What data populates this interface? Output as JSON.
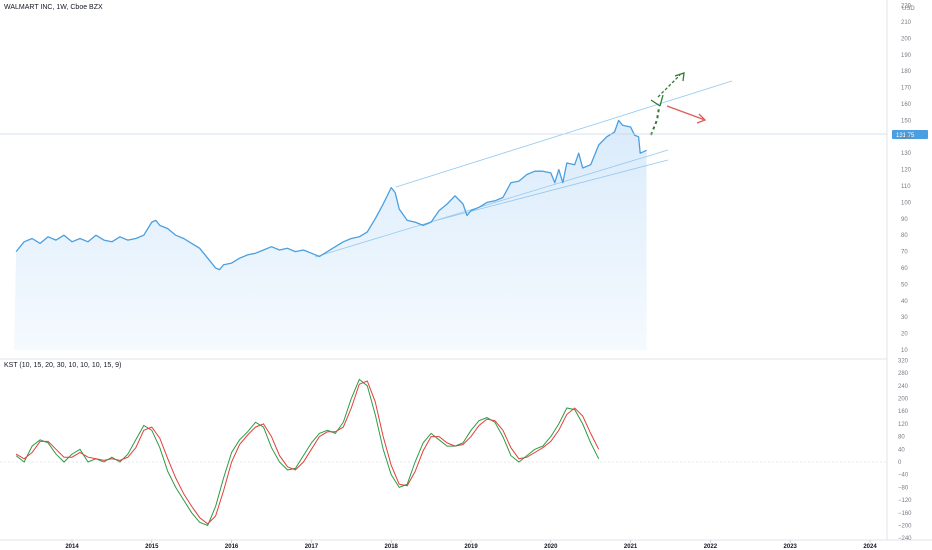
{
  "header": {
    "title": "WALMART INC, 1W, Cboe BZX",
    "currency": "USD",
    "price_tag": "131.75"
  },
  "indicator": {
    "label": "KST (10, 15, 20, 30, 10, 10, 10, 15, 9)"
  },
  "colors": {
    "price_line": "#4a9fe0",
    "area_fill": "#d8eafb",
    "channel": "#93c8ee",
    "kst_line": "#2e9b47",
    "signal_line": "#e0403a",
    "arrow_up": "#2e7d32",
    "arrow_down": "#e05a5a",
    "price_tag_bg": "#4a9fe0"
  },
  "chart_data": [
    {
      "type": "area",
      "title": "WALMART INC, 1W, Cboe BZX",
      "ylabel": "USD",
      "ylim": [
        8,
        222
      ],
      "y_ticks": [
        10,
        20,
        30,
        40,
        50,
        60,
        70,
        80,
        90,
        100,
        110,
        120,
        130,
        140,
        150,
        160,
        170,
        180,
        190,
        200,
        210,
        220
      ],
      "x_ticks": [
        "2014",
        "2015",
        "2016",
        "2017",
        "2018",
        "2019",
        "2020",
        "2021",
        "2022",
        "2023",
        "2024"
      ],
      "last_price": 131.75,
      "series": [
        {
          "values": [
            [
              2013.3,
              70
            ],
            [
              2013.4,
              76
            ],
            [
              2013.5,
              78
            ],
            [
              2013.6,
              75
            ],
            [
              2013.7,
              79
            ],
            [
              2013.8,
              77
            ],
            [
              2013.9,
              80
            ],
            [
              2014.0,
              76
            ],
            [
              2014.1,
              78
            ],
            [
              2014.2,
              76
            ],
            [
              2014.3,
              80
            ],
            [
              2014.4,
              77
            ],
            [
              2014.5,
              76
            ],
            [
              2014.6,
              79
            ],
            [
              2014.7,
              77
            ],
            [
              2014.8,
              78
            ],
            [
              2014.9,
              80
            ],
            [
              2015.0,
              88
            ],
            [
              2015.05,
              89
            ],
            [
              2015.1,
              86
            ],
            [
              2015.2,
              84
            ],
            [
              2015.3,
              80
            ],
            [
              2015.4,
              78
            ],
            [
              2015.5,
              75
            ],
            [
              2015.6,
              72
            ],
            [
              2015.7,
              66
            ],
            [
              2015.8,
              60
            ],
            [
              2015.85,
              59
            ],
            [
              2015.9,
              62
            ],
            [
              2016.0,
              63
            ],
            [
              2016.1,
              66
            ],
            [
              2016.2,
              68
            ],
            [
              2016.3,
              69
            ],
            [
              2016.4,
              71
            ],
            [
              2016.5,
              73
            ],
            [
              2016.6,
              71
            ],
            [
              2016.7,
              72
            ],
            [
              2016.8,
              70
            ],
            [
              2016.9,
              71
            ],
            [
              2017.0,
              69
            ],
            [
              2017.1,
              67
            ],
            [
              2017.2,
              70
            ],
            [
              2017.3,
              73
            ],
            [
              2017.4,
              76
            ],
            [
              2017.5,
              78
            ],
            [
              2017.6,
              79
            ],
            [
              2017.7,
              82
            ],
            [
              2017.8,
              90
            ],
            [
              2017.9,
              99
            ],
            [
              2018.0,
              109
            ],
            [
              2018.05,
              106
            ],
            [
              2018.1,
              96
            ],
            [
              2018.2,
              89
            ],
            [
              2018.3,
              88
            ],
            [
              2018.4,
              86
            ],
            [
              2018.5,
              88
            ],
            [
              2018.6,
              95
            ],
            [
              2018.7,
              99
            ],
            [
              2018.8,
              104
            ],
            [
              2018.9,
              99
            ],
            [
              2018.95,
              92
            ],
            [
              2019.0,
              95
            ],
            [
              2019.1,
              97
            ],
            [
              2019.2,
              100
            ],
            [
              2019.3,
              101
            ],
            [
              2019.4,
              103
            ],
            [
              2019.5,
              112
            ],
            [
              2019.6,
              113
            ],
            [
              2019.7,
              117
            ],
            [
              2019.8,
              119
            ],
            [
              2019.9,
              119
            ],
            [
              2020.0,
              118
            ],
            [
              2020.05,
              112
            ],
            [
              2020.1,
              120
            ],
            [
              2020.15,
              112
            ],
            [
              2020.2,
              124
            ],
            [
              2020.3,
              123
            ],
            [
              2020.35,
              130
            ],
            [
              2020.4,
              121
            ],
            [
              2020.5,
              123
            ],
            [
              2020.6,
              135
            ],
            [
              2020.7,
              140
            ],
            [
              2020.8,
              143
            ],
            [
              2020.85,
              150
            ],
            [
              2020.9,
              147
            ],
            [
              2021.0,
              146
            ],
            [
              2021.05,
              141
            ],
            [
              2021.1,
              140
            ],
            [
              2021.12,
              130
            ],
            [
              2021.2,
              131.75
            ]
          ]
        }
      ]
    },
    {
      "type": "line",
      "title": "KST (10, 15, 20, 30, 10, 10, 10, 15, 9)",
      "ylim": [
        -240,
        320
      ],
      "y_ticks": [
        -240,
        -200,
        -160,
        -120,
        -80,
        -40,
        0,
        40,
        80,
        120,
        160,
        200,
        240,
        280,
        320
      ],
      "series": [
        {
          "name": "KST",
          "values": [
            [
              2013.3,
              20
            ],
            [
              2013.4,
              0
            ],
            [
              2013.5,
              50
            ],
            [
              2013.6,
              70
            ],
            [
              2013.7,
              60
            ],
            [
              2013.8,
              25
            ],
            [
              2013.9,
              0
            ],
            [
              2014.0,
              25
            ],
            [
              2014.1,
              40
            ],
            [
              2014.2,
              0
            ],
            [
              2014.3,
              10
            ],
            [
              2014.4,
              0
            ],
            [
              2014.5,
              15
            ],
            [
              2014.6,
              0
            ],
            [
              2014.7,
              25
            ],
            [
              2014.8,
              70
            ],
            [
              2014.9,
              115
            ],
            [
              2015.0,
              100
            ],
            [
              2015.1,
              45
            ],
            [
              2015.2,
              -30
            ],
            [
              2015.3,
              -80
            ],
            [
              2015.4,
              -120
            ],
            [
              2015.5,
              -160
            ],
            [
              2015.6,
              -190
            ],
            [
              2015.7,
              -200
            ],
            [
              2015.8,
              -140
            ],
            [
              2015.9,
              -50
            ],
            [
              2016.0,
              30
            ],
            [
              2016.1,
              70
            ],
            [
              2016.2,
              95
            ],
            [
              2016.3,
              125
            ],
            [
              2016.4,
              110
            ],
            [
              2016.5,
              45
            ],
            [
              2016.6,
              0
            ],
            [
              2016.7,
              -25
            ],
            [
              2016.8,
              -20
            ],
            [
              2016.9,
              20
            ],
            [
              2017.0,
              60
            ],
            [
              2017.1,
              90
            ],
            [
              2017.2,
              100
            ],
            [
              2017.3,
              90
            ],
            [
              2017.4,
              125
            ],
            [
              2017.5,
              200
            ],
            [
              2017.6,
              260
            ],
            [
              2017.7,
              240
            ],
            [
              2017.8,
              150
            ],
            [
              2017.9,
              40
            ],
            [
              2018.0,
              -40
            ],
            [
              2018.1,
              -80
            ],
            [
              2018.2,
              -70
            ],
            [
              2018.3,
              0
            ],
            [
              2018.4,
              60
            ],
            [
              2018.5,
              90
            ],
            [
              2018.6,
              70
            ],
            [
              2018.7,
              50
            ],
            [
              2018.8,
              50
            ],
            [
              2018.9,
              60
            ],
            [
              2019.0,
              100
            ],
            [
              2019.1,
              130
            ],
            [
              2019.2,
              140
            ],
            [
              2019.3,
              125
            ],
            [
              2019.4,
              80
            ],
            [
              2019.5,
              20
            ],
            [
              2019.6,
              0
            ],
            [
              2019.7,
              20
            ],
            [
              2019.8,
              40
            ],
            [
              2019.9,
              50
            ],
            [
              2020.0,
              80
            ],
            [
              2020.1,
              120
            ],
            [
              2020.2,
              170
            ],
            [
              2020.3,
              165
            ],
            [
              2020.4,
              120
            ],
            [
              2020.5,
              60
            ],
            [
              2020.6,
              10
            ]
          ]
        },
        {
          "name": "Signal",
          "values": [
            [
              2013.3,
              25
            ],
            [
              2013.4,
              10
            ],
            [
              2013.5,
              30
            ],
            [
              2013.6,
              65
            ],
            [
              2013.7,
              65
            ],
            [
              2013.8,
              40
            ],
            [
              2013.9,
              15
            ],
            [
              2014.0,
              15
            ],
            [
              2014.1,
              30
            ],
            [
              2014.2,
              15
            ],
            [
              2014.3,
              10
            ],
            [
              2014.4,
              5
            ],
            [
              2014.5,
              10
            ],
            [
              2014.6,
              5
            ],
            [
              2014.7,
              15
            ],
            [
              2014.8,
              45
            ],
            [
              2014.9,
              100
            ],
            [
              2015.0,
              110
            ],
            [
              2015.1,
              75
            ],
            [
              2015.2,
              10
            ],
            [
              2015.3,
              -50
            ],
            [
              2015.4,
              -100
            ],
            [
              2015.5,
              -140
            ],
            [
              2015.6,
              -175
            ],
            [
              2015.7,
              -195
            ],
            [
              2015.8,
              -170
            ],
            [
              2015.9,
              -90
            ],
            [
              2016.0,
              0
            ],
            [
              2016.1,
              55
            ],
            [
              2016.2,
              85
            ],
            [
              2016.3,
              110
            ],
            [
              2016.4,
              120
            ],
            [
              2016.5,
              80
            ],
            [
              2016.6,
              20
            ],
            [
              2016.7,
              -15
            ],
            [
              2016.8,
              -25
            ],
            [
              2016.9,
              0
            ],
            [
              2017.0,
              40
            ],
            [
              2017.1,
              80
            ],
            [
              2017.2,
              95
            ],
            [
              2017.3,
              95
            ],
            [
              2017.4,
              110
            ],
            [
              2017.5,
              170
            ],
            [
              2017.6,
              245
            ],
            [
              2017.7,
              255
            ],
            [
              2017.8,
              190
            ],
            [
              2017.9,
              80
            ],
            [
              2018.0,
              -10
            ],
            [
              2018.1,
              -70
            ],
            [
              2018.2,
              -75
            ],
            [
              2018.3,
              -30
            ],
            [
              2018.4,
              35
            ],
            [
              2018.5,
              80
            ],
            [
              2018.6,
              80
            ],
            [
              2018.7,
              60
            ],
            [
              2018.8,
              50
            ],
            [
              2018.9,
              55
            ],
            [
              2019.0,
              80
            ],
            [
              2019.1,
              115
            ],
            [
              2019.2,
              135
            ],
            [
              2019.3,
              130
            ],
            [
              2019.4,
              100
            ],
            [
              2019.5,
              45
            ],
            [
              2019.6,
              10
            ],
            [
              2019.7,
              15
            ],
            [
              2019.8,
              30
            ],
            [
              2019.9,
              45
            ],
            [
              2020.0,
              65
            ],
            [
              2020.1,
              100
            ],
            [
              2020.2,
              150
            ],
            [
              2020.3,
              170
            ],
            [
              2020.4,
              145
            ],
            [
              2020.5,
              90
            ],
            [
              2020.6,
              40
            ]
          ]
        }
      ]
    }
  ]
}
